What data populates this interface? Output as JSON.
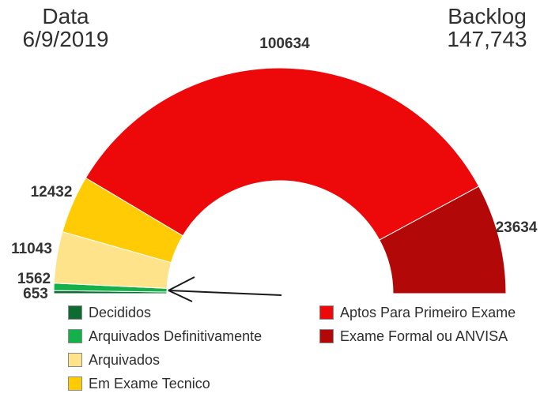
{
  "header": {
    "date_label": "Data",
    "date_value": "6/9/2019",
    "backlog_label": "Backlog",
    "backlog_value": "147,743"
  },
  "chart_data": {
    "type": "pie",
    "variant": "half-donut-gauge",
    "start_angle_deg": 180,
    "end_angle_deg": 0,
    "legend_position": "bottom (two columns)",
    "series": [
      {
        "label": "Decididos",
        "value": 653,
        "color": "#0E6B31"
      },
      {
        "label": "Arquivados Definitivamente",
        "value": 1562,
        "color": "#14B14B"
      },
      {
        "label": "Arquivados",
        "value": 11043,
        "color": "#FFE38A"
      },
      {
        "label": "Em Exame Tecnico",
        "value": 12432,
        "color": "#FFCB05"
      },
      {
        "label": "Aptos Para Primeiro Exame",
        "value": 100634,
        "color": "#ED0909"
      },
      {
        "label": "Exame Formal ou ANVISA",
        "value": 23634,
        "color": "#B20808"
      }
    ],
    "data_labels": [
      "653",
      "1562",
      "11043",
      "12432",
      "100634",
      "23634"
    ],
    "backlog_total_display": "147,743",
    "annotation": "black arrow pointing at the thin green slices (Decididos / Arquivados Definitivamente)"
  }
}
